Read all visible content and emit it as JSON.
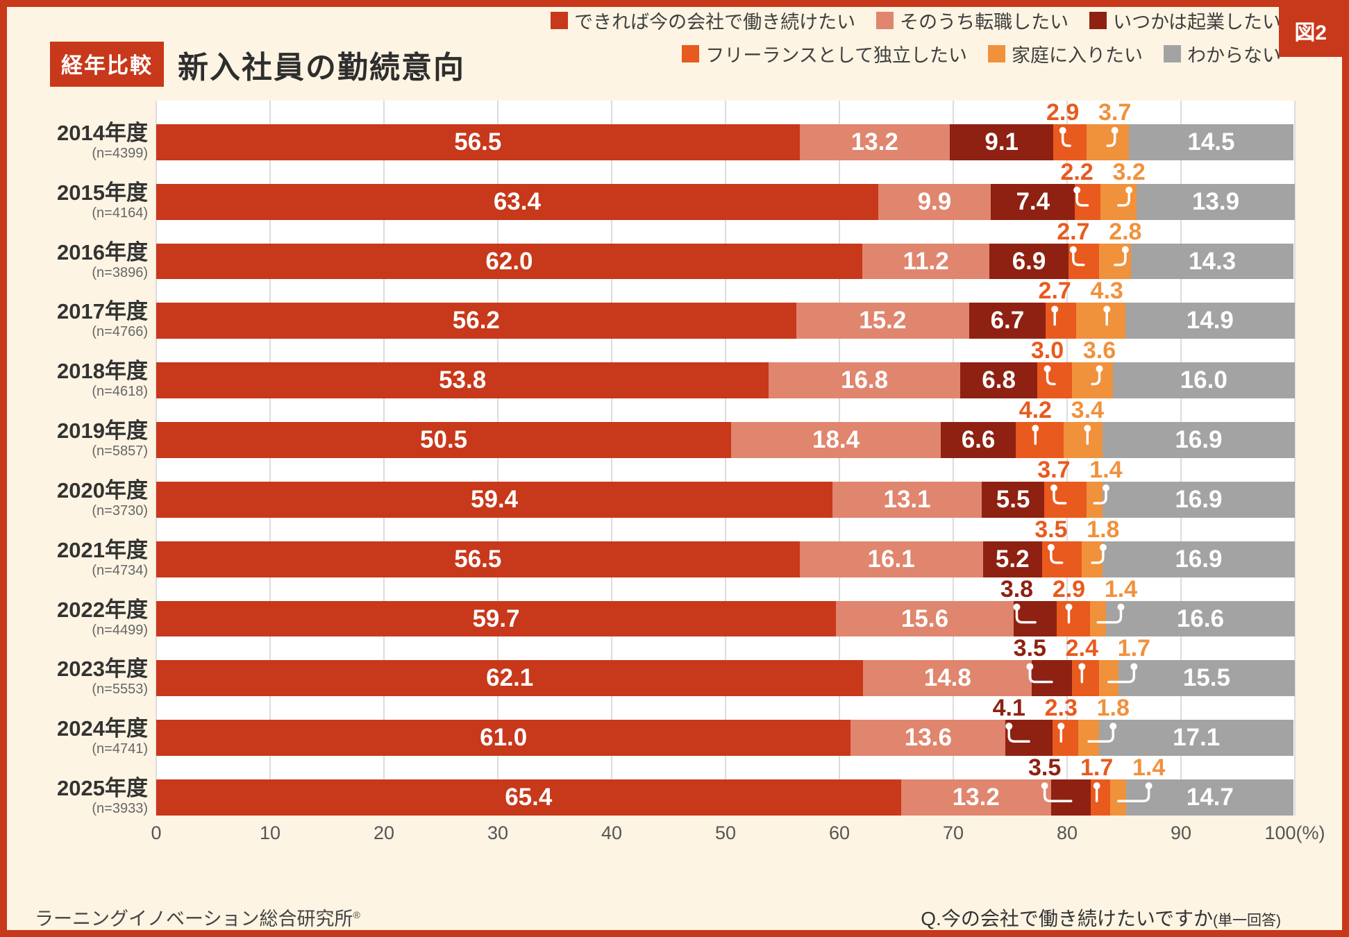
{
  "figure_tag": "図2",
  "header": {
    "badge": "経年比較",
    "title": "新入社員の勤続意向"
  },
  "footer": {
    "source": "ラーニングイノベーション総合研究所",
    "source_mark": "®",
    "question": "Q.今の会社で働き続けたいですか",
    "question_note": "(単一回答)"
  },
  "colors": {
    "background": "#fdf4e3",
    "frame": "#c8381a",
    "plot_background": "#ffffff",
    "gridline": "#dcdcdc",
    "text_dark": "#2e2e2e",
    "text_gray": "#666666"
  },
  "chart_data": {
    "type": "bar",
    "stacked": true,
    "orientation": "horizontal",
    "unit": "%",
    "xlim": [
      0,
      100
    ],
    "grid": true,
    "x_ticks": [
      "0",
      "10",
      "20",
      "30",
      "40",
      "50",
      "60",
      "70",
      "80",
      "90",
      "100(%)"
    ],
    "series": [
      {
        "name": "できれば今の会社で働き続けたい",
        "color": "#c8381a"
      },
      {
        "name": "そのうち転職したい",
        "color": "#e0856e"
      },
      {
        "name": "いつかは起業したい",
        "color": "#8e2112"
      },
      {
        "name": "フリーランスとして独立したい",
        "color": "#e85a1e"
      },
      {
        "name": "家庭に入りたい",
        "color": "#f0913c"
      },
      {
        "name": "わからない",
        "color": "#a3a3a3"
      }
    ],
    "legend_rows": [
      [
        0,
        1,
        2
      ],
      [
        3,
        4,
        5
      ]
    ],
    "rows": [
      {
        "year": "2014年度",
        "n": "(n=4399)",
        "values": [
          "56.5",
          "13.2",
          "9.1",
          "2.9",
          "3.7",
          "14.5"
        ]
      },
      {
        "year": "2015年度",
        "n": "(n=4164)",
        "values": [
          "63.4",
          "9.9",
          "7.4",
          "2.2",
          "3.2",
          "13.9"
        ]
      },
      {
        "year": "2016年度",
        "n": "(n=3896)",
        "values": [
          "62.0",
          "11.2",
          "6.9",
          "2.7",
          "2.8",
          "14.3"
        ]
      },
      {
        "year": "2017年度",
        "n": "(n=4766)",
        "values": [
          "56.2",
          "15.2",
          "6.7",
          "2.7",
          "4.3",
          "14.9"
        ]
      },
      {
        "year": "2018年度",
        "n": "(n=4618)",
        "values": [
          "53.8",
          "16.8",
          "6.8",
          "3.0",
          "3.6",
          "16.0"
        ]
      },
      {
        "year": "2019年度",
        "n": "(n=5857)",
        "values": [
          "50.5",
          "18.4",
          "6.6",
          "4.2",
          "3.4",
          "16.9"
        ]
      },
      {
        "year": "2020年度",
        "n": "(n=3730)",
        "values": [
          "59.4",
          "13.1",
          "5.5",
          "3.7",
          "1.4",
          "16.9"
        ]
      },
      {
        "year": "2021年度",
        "n": "(n=4734)",
        "values": [
          "56.5",
          "16.1",
          "5.2",
          "3.5",
          "1.8",
          "16.9"
        ]
      },
      {
        "year": "2022年度",
        "n": "(n=4499)",
        "values": [
          "59.7",
          "15.6",
          "3.8",
          "2.9",
          "1.4",
          "16.6"
        ]
      },
      {
        "year": "2023年度",
        "n": "(n=5553)",
        "values": [
          "62.1",
          "14.8",
          "3.5",
          "2.4",
          "1.7",
          "15.5"
        ]
      },
      {
        "year": "2024年度",
        "n": "(n=4741)",
        "values": [
          "61.0",
          "13.6",
          "4.1",
          "2.3",
          "1.8",
          "17.1"
        ]
      },
      {
        "year": "2025年度",
        "n": "(n=3933)",
        "values": [
          "65.4",
          "13.2",
          "3.5",
          "1.7",
          "1.4",
          "14.7"
        ]
      }
    ]
  }
}
